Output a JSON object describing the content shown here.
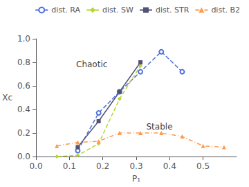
{
  "chart_data": {
    "type": "line",
    "xlabel": "P₁",
    "ylabel": "Xc",
    "xlim": [
      0.0,
      0.6
    ],
    "ylim": [
      0.0,
      1.0
    ],
    "xticks": [
      {
        "value": 0.0,
        "label": "0.0"
      },
      0.1,
      0.2,
      0.3,
      0.4,
      0.5
    ],
    "yticks": [
      {
        "value": 0.0,
        "label": "0.0"
      },
      0.2,
      0.4,
      0.6,
      0.8,
      {
        "value": 1.0,
        "label": "1.0"
      }
    ],
    "grid": false,
    "legend": "upper right",
    "series": [
      {
        "name": "dist. RA",
        "marker": "circle",
        "line_style": "dashed",
        "x": [
          0.125,
          0.1875,
          0.25,
          0.3125,
          0.375,
          0.4375
        ],
        "values": [
          0.05,
          0.37,
          0.55,
          0.72,
          0.89,
          0.72
        ]
      },
      {
        "name": "dist. SW",
        "marker": "diamond",
        "line_style": "dashed",
        "x": [
          0.0625,
          0.125,
          0.1875,
          0.25,
          0.3125
        ],
        "values": [
          0.0,
          0.01,
          0.11,
          0.49,
          0.77
        ]
      },
      {
        "name": "dist. STR",
        "marker": "square",
        "line_style": "solid",
        "x": [
          0.125,
          0.1875,
          0.25,
          0.3125
        ],
        "values": [
          0.08,
          0.3,
          0.55,
          0.8
        ]
      },
      {
        "name": "dist. B2",
        "marker": "triangle",
        "line_style": "dashdot",
        "x": [
          0.0625,
          0.125,
          0.1875,
          0.25,
          0.3125,
          0.375,
          0.4375,
          0.5,
          0.5625
        ],
        "values": [
          0.09,
          0.12,
          0.13,
          0.2,
          0.2,
          0.2,
          0.17,
          0.09,
          0.08
        ]
      }
    ],
    "annotations": [
      {
        "text": "Chaotic",
        "x": 0.12,
        "y": 0.75
      },
      {
        "text": "Stable",
        "x": 0.33,
        "y": 0.22
      }
    ]
  }
}
